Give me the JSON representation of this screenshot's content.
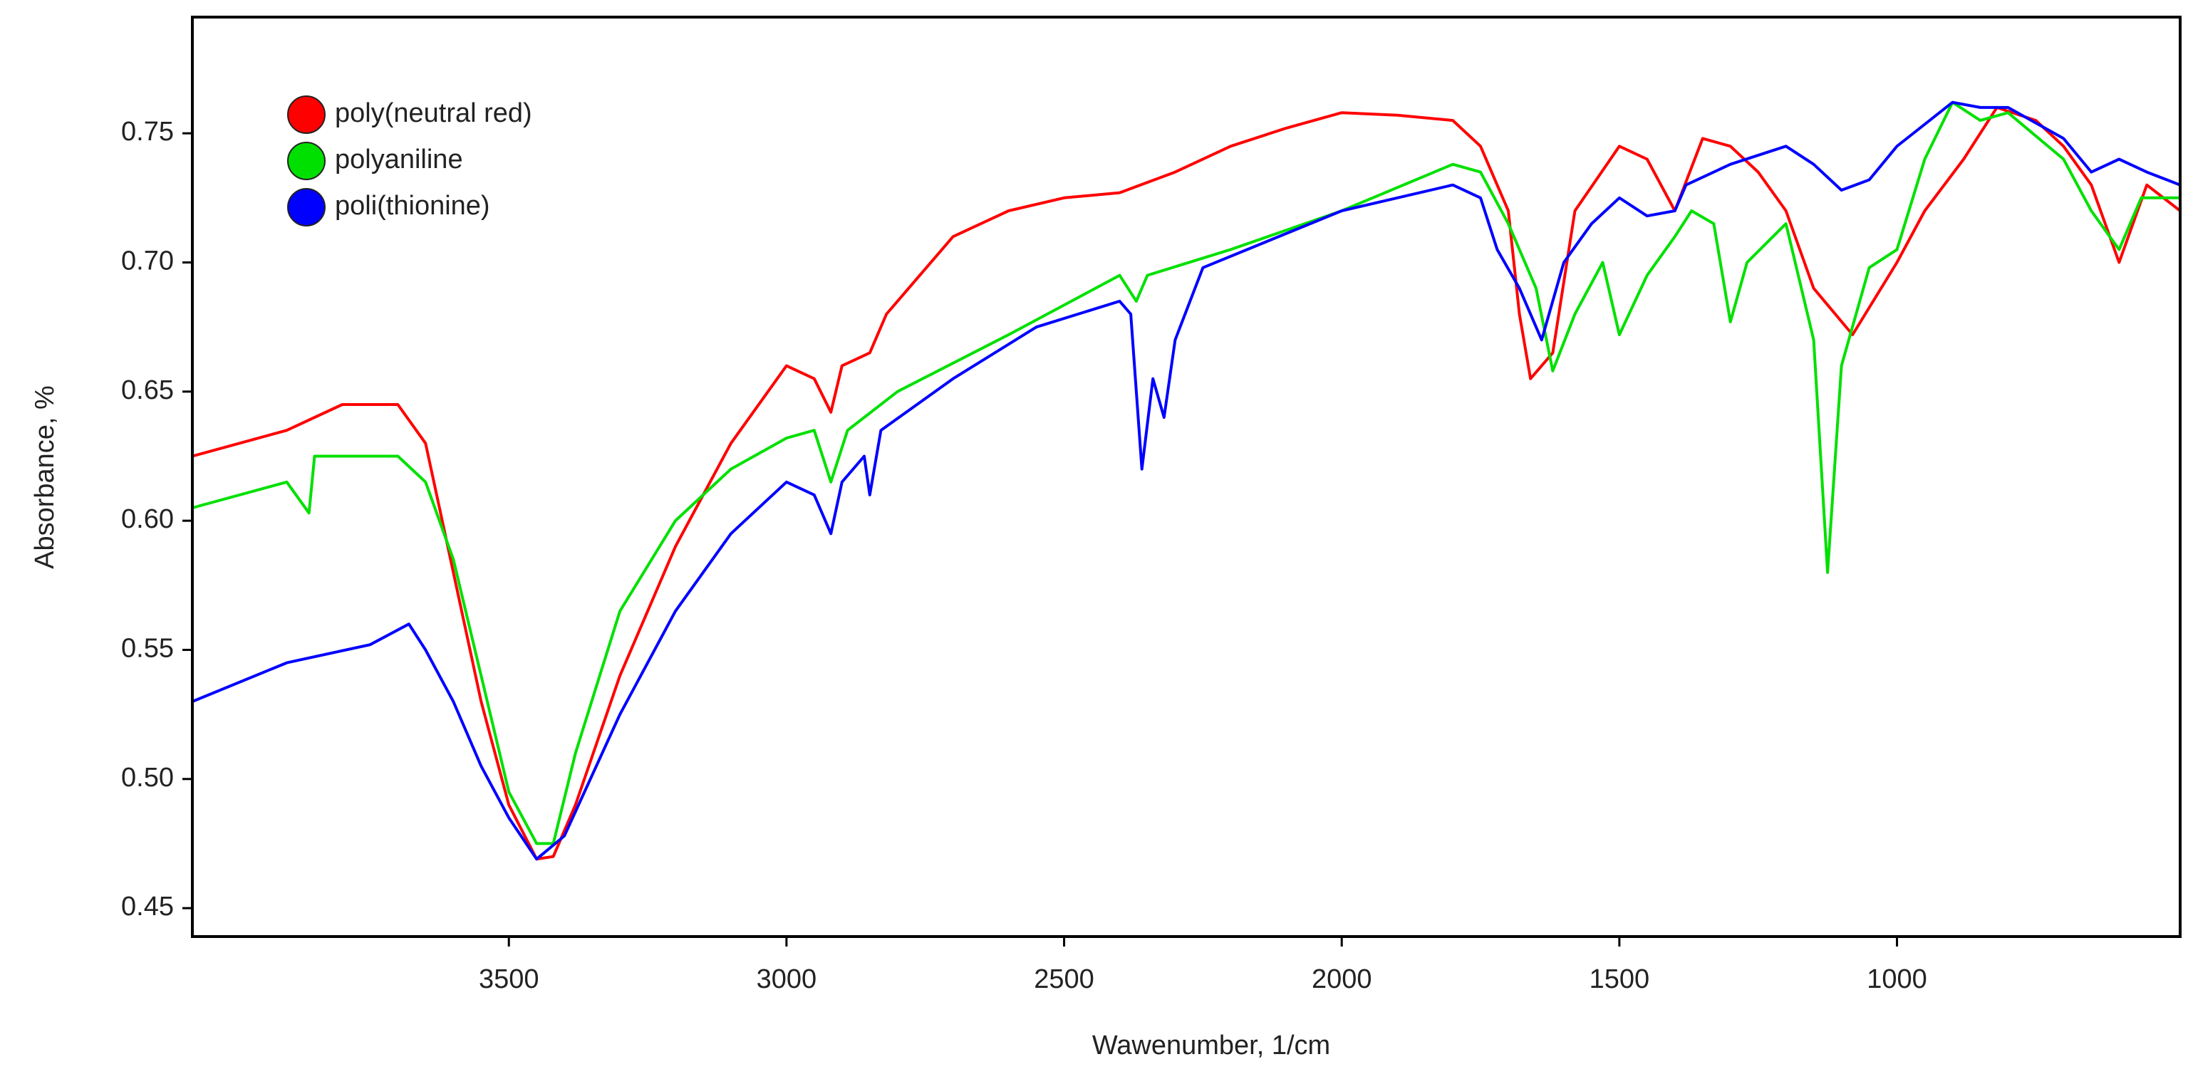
{
  "chart_data": {
    "type": "line",
    "xlabel": "Wawenumber, 1/cm",
    "ylabel": "Absorbance, %",
    "xlim": [
      4070,
      490
    ],
    "ylim": [
      0.439,
      0.795
    ],
    "xticks": [
      3500,
      3000,
      2500,
      2000,
      1500,
      1000
    ],
    "yticks": [
      {
        "value": 0.45,
        "label": "0.45"
      },
      {
        "value": 0.5,
        "label": "0.50"
      },
      {
        "value": 0.55,
        "label": "0.55"
      },
      {
        "value": 0.6,
        "label": "0.60"
      },
      {
        "value": 0.65,
        "label": "0.65"
      },
      {
        "value": 0.7,
        "label": "0.70"
      },
      {
        "value": 0.75,
        "label": "0.75"
      }
    ],
    "grid": false,
    "legend": "upper-left",
    "series": [
      {
        "name": "poly(neutral red)",
        "color": "#ff0000",
        "x": [
          4070,
          3900,
          3800,
          3700,
          3650,
          3600,
          3550,
          3500,
          3450,
          3420,
          3380,
          3300,
          3200,
          3100,
          3000,
          2950,
          2920,
          2900,
          2850,
          2820,
          2700,
          2600,
          2500,
          2400,
          2300,
          2200,
          2100,
          2000,
          1900,
          1800,
          1750,
          1700,
          1680,
          1660,
          1620,
          1580,
          1500,
          1450,
          1400,
          1350,
          1300,
          1250,
          1200,
          1150,
          1080,
          1000,
          950,
          880,
          820,
          750,
          700,
          650,
          600,
          550,
          490
        ],
        "values": [
          0.625,
          0.635,
          0.645,
          0.645,
          0.63,
          0.58,
          0.53,
          0.49,
          0.469,
          0.47,
          0.49,
          0.54,
          0.59,
          0.63,
          0.66,
          0.655,
          0.642,
          0.66,
          0.665,
          0.68,
          0.71,
          0.72,
          0.725,
          0.727,
          0.735,
          0.745,
          0.752,
          0.758,
          0.757,
          0.755,
          0.745,
          0.72,
          0.68,
          0.655,
          0.665,
          0.72,
          0.745,
          0.74,
          0.72,
          0.748,
          0.745,
          0.735,
          0.72,
          0.69,
          0.672,
          0.7,
          0.72,
          0.74,
          0.76,
          0.755,
          0.745,
          0.73,
          0.7,
          0.73,
          0.72
        ]
      },
      {
        "name": "polyaniline",
        "color": "#00e000",
        "x": [
          4070,
          3900,
          3860,
          3850,
          3700,
          3650,
          3600,
          3550,
          3500,
          3450,
          3420,
          3380,
          3300,
          3200,
          3100,
          3000,
          2950,
          2920,
          2890,
          2800,
          2600,
          2400,
          2370,
          2350,
          2200,
          2000,
          1800,
          1750,
          1700,
          1650,
          1620,
          1580,
          1530,
          1500,
          1450,
          1400,
          1370,
          1330,
          1300,
          1270,
          1200,
          1150,
          1125,
          1100,
          1050,
          1000,
          950,
          900,
          850,
          800,
          700,
          650,
          600,
          560,
          490
        ],
        "values": [
          0.605,
          0.615,
          0.603,
          0.625,
          0.625,
          0.615,
          0.585,
          0.54,
          0.495,
          0.475,
          0.475,
          0.51,
          0.565,
          0.6,
          0.62,
          0.632,
          0.635,
          0.615,
          0.635,
          0.65,
          0.672,
          0.695,
          0.685,
          0.695,
          0.705,
          0.72,
          0.738,
          0.735,
          0.715,
          0.69,
          0.658,
          0.68,
          0.7,
          0.672,
          0.695,
          0.71,
          0.72,
          0.715,
          0.677,
          0.7,
          0.715,
          0.67,
          0.58,
          0.66,
          0.698,
          0.705,
          0.74,
          0.762,
          0.755,
          0.758,
          0.74,
          0.72,
          0.705,
          0.725,
          0.725
        ]
      },
      {
        "name": "poli(thionine)",
        "color": "#0000ff",
        "x": [
          4070,
          3900,
          3750,
          3680,
          3650,
          3600,
          3550,
          3500,
          3450,
          3400,
          3300,
          3200,
          3100,
          3000,
          2950,
          2920,
          2900,
          2860,
          2850,
          2830,
          2700,
          2550,
          2400,
          2380,
          2360,
          2340,
          2320,
          2300,
          2250,
          2000,
          1800,
          1750,
          1720,
          1680,
          1640,
          1600,
          1550,
          1500,
          1450,
          1400,
          1380,
          1300,
          1200,
          1150,
          1100,
          1050,
          1000,
          900,
          850,
          800,
          700,
          650,
          600,
          550,
          490
        ],
        "values": [
          0.53,
          0.545,
          0.552,
          0.56,
          0.55,
          0.53,
          0.505,
          0.485,
          0.469,
          0.478,
          0.525,
          0.565,
          0.595,
          0.615,
          0.61,
          0.595,
          0.615,
          0.625,
          0.61,
          0.635,
          0.655,
          0.675,
          0.685,
          0.68,
          0.62,
          0.655,
          0.64,
          0.67,
          0.698,
          0.72,
          0.73,
          0.725,
          0.705,
          0.69,
          0.67,
          0.7,
          0.715,
          0.725,
          0.718,
          0.72,
          0.73,
          0.738,
          0.745,
          0.738,
          0.728,
          0.732,
          0.745,
          0.762,
          0.76,
          0.76,
          0.748,
          0.735,
          0.74,
          0.735,
          0.73
        ]
      }
    ]
  }
}
